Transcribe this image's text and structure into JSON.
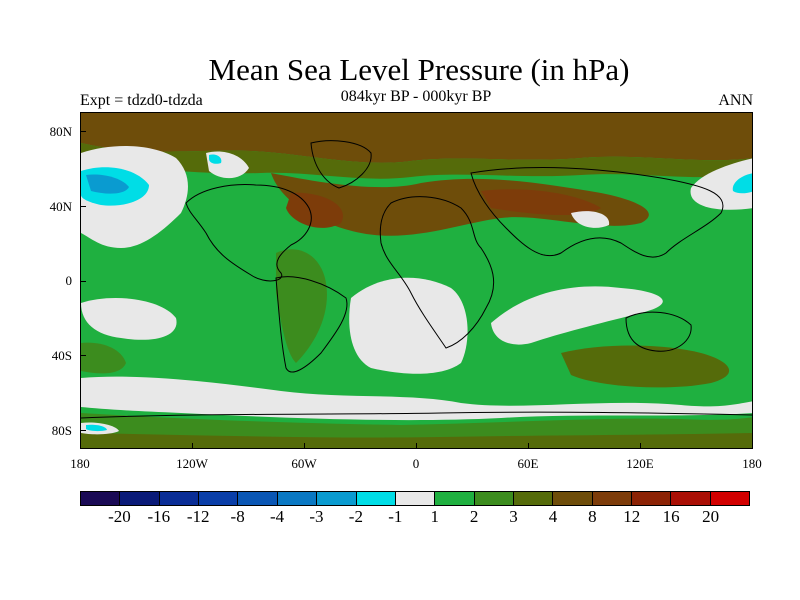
{
  "header": {
    "title": "Mean Sea Level Pressure (in hPa)",
    "experiment": "Expt = tdzd0-tdzda",
    "period": "084kyr BP - 000kyr BP",
    "season": "ANN"
  },
  "axes": {
    "y_labels": [
      "80N",
      "40N",
      "0",
      "40S",
      "80S"
    ],
    "x_labels": [
      "180",
      "120W",
      "60W",
      "0",
      "60E",
      "120E",
      "180"
    ]
  },
  "colorbar": {
    "colors": [
      "#1a0a55",
      "#0a1a78",
      "#0a2d96",
      "#0a3ea8",
      "#0a56b4",
      "#0a78c3",
      "#0a9bd0",
      "#00dde6",
      "#e8e8e8",
      "#1fb040",
      "#3c8c1e",
      "#556b0a",
      "#6e4d0a",
      "#7d3c0a",
      "#8c2305",
      "#aa0f05",
      "#d20000"
    ],
    "labels": [
      "-20",
      "-16",
      "-12",
      "-8",
      "-4",
      "-3",
      "-2",
      "-1",
      "1",
      "2",
      "3",
      "4",
      "8",
      "12",
      "16",
      "20"
    ]
  },
  "map_colors": {
    "ocean_base": "#1fb040",
    "near_zero": "#e8e8e8",
    "green_dark": "#3c8c1e",
    "olive": "#556b0a",
    "brown": "#6e4d0a",
    "dark_brown": "#7d3c0a",
    "cyan": "#00dde6",
    "blue": "#0a9bd0"
  }
}
